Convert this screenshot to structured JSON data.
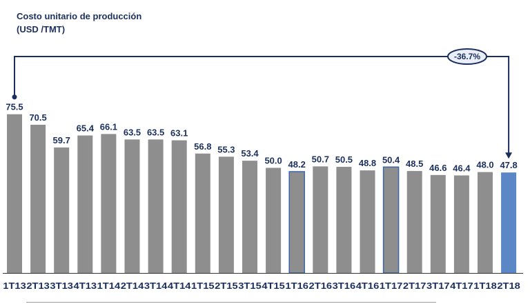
{
  "chart_data": {
    "type": "bar",
    "title": "Costo unitario de producción",
    "subtitle": "(USD /TMT)",
    "categories": [
      "1T13",
      "2T13",
      "3T13",
      "4T13",
      "1T14",
      "2T14",
      "3T14",
      "4T14",
      "1T15",
      "2T15",
      "3T15",
      "4T15",
      "1T16",
      "2T16",
      "3T16",
      "4T16",
      "1T17",
      "2T17",
      "3T17",
      "4T17",
      "1T18",
      "2T18"
    ],
    "values": [
      75.5,
      70.5,
      59.7,
      65.4,
      66.1,
      63.5,
      63.5,
      63.1,
      56.8,
      55.3,
      53.4,
      50.0,
      48.2,
      50.7,
      50.5,
      48.8,
      50.4,
      48.5,
      46.6,
      46.4,
      48.0,
      47.8
    ],
    "value_labels": [
      "75.5",
      "70.5",
      "59.7",
      "65.4",
      "66.1",
      "63.5",
      "63.5",
      "63.1",
      "56.8",
      "55.3",
      "53.4",
      "50.0",
      "48.2",
      "50.7",
      "50.5",
      "48.8",
      "50.4",
      "48.5",
      "46.6",
      "46.4",
      "48.0",
      "47.8"
    ],
    "bar_colors": [
      "#8e8e8e",
      "#8e8e8e",
      "#8e8e8e",
      "#8e8e8e",
      "#8e8e8e",
      "#8e8e8e",
      "#8e8e8e",
      "#8e8e8e",
      "#8e8e8e",
      "#8e8e8e",
      "#8e8e8e",
      "#8e8e8e",
      "#8e8e8e",
      "#8e8e8e",
      "#8e8e8e",
      "#8e8e8e",
      "#8e8e8e",
      "#8e8e8e",
      "#8e8e8e",
      "#8e8e8e",
      "#8e8e8e",
      "#5b87c6"
    ],
    "highlight_outline_color": "#3a66a8",
    "highlight_outline_indices": [
      12,
      16
    ],
    "change_annotation": "-36.7%",
    "annotation_color": "#1b2f5e",
    "grid": false,
    "legend": "none"
  }
}
